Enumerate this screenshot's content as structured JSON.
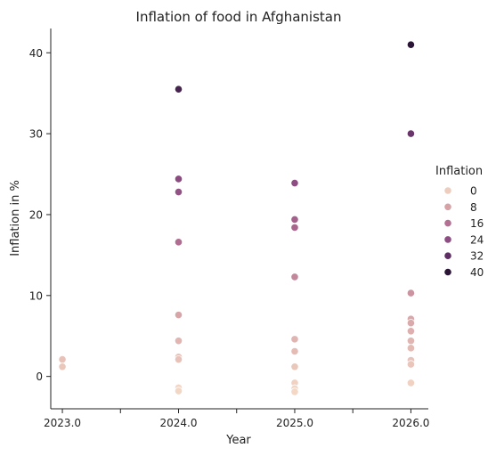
{
  "chart_data": {
    "type": "scatter",
    "title": "Inflation of food in Afghanistan",
    "xlabel": "Year",
    "ylabel": "Inflation in %",
    "xlim": [
      2022.9,
      2026.15
    ],
    "ylim": [
      -4,
      43
    ],
    "xticks": [
      2023.0,
      2023.5,
      2024.0,
      2024.5,
      2025.0,
      2025.5,
      2026.0
    ],
    "xtick_labels": [
      "2023.0",
      "",
      "2024.0",
      "",
      "2025.0",
      "",
      "2026.0"
    ],
    "yticks": [
      0,
      10,
      20,
      30,
      40
    ],
    "ytick_labels": [
      "0",
      "10",
      "20",
      "30",
      "40"
    ],
    "grid": false,
    "legend": {
      "title": "Inflation",
      "placement": "right",
      "entries": [
        {
          "label": "0",
          "color": "#eecdbf"
        },
        {
          "label": "8",
          "color": "#d6a2a6"
        },
        {
          "label": "16",
          "color": "#b37092"
        },
        {
          "label": "24",
          "color": "#8d4d82"
        },
        {
          "label": "32",
          "color": "#5e2d63"
        },
        {
          "label": "40",
          "color": "#2a1537"
        }
      ]
    },
    "hue_range": [
      -2,
      41
    ],
    "points": [
      {
        "x": 2023.0,
        "y": 2.1
      },
      {
        "x": 2023.0,
        "y": 1.2
      },
      {
        "x": 2024.0,
        "y": 35.5
      },
      {
        "x": 2024.0,
        "y": 24.4
      },
      {
        "x": 2024.0,
        "y": 22.8
      },
      {
        "x": 2024.0,
        "y": 16.6
      },
      {
        "x": 2024.0,
        "y": 7.6
      },
      {
        "x": 2024.0,
        "y": 4.4
      },
      {
        "x": 2024.0,
        "y": 2.4
      },
      {
        "x": 2024.0,
        "y": 2.1
      },
      {
        "x": 2024.0,
        "y": -1.4
      },
      {
        "x": 2024.0,
        "y": -1.8
      },
      {
        "x": 2025.0,
        "y": 23.9
      },
      {
        "x": 2025.0,
        "y": 19.4
      },
      {
        "x": 2025.0,
        "y": 18.4
      },
      {
        "x": 2025.0,
        "y": 12.3
      },
      {
        "x": 2025.0,
        "y": 4.6
      },
      {
        "x": 2025.0,
        "y": 3.1
      },
      {
        "x": 2025.0,
        "y": 1.2
      },
      {
        "x": 2025.0,
        "y": -0.8
      },
      {
        "x": 2025.0,
        "y": -1.5
      },
      {
        "x": 2025.0,
        "y": -1.9
      },
      {
        "x": 2026.0,
        "y": 41.0
      },
      {
        "x": 2026.0,
        "y": 30.0
      },
      {
        "x": 2026.0,
        "y": 10.3
      },
      {
        "x": 2026.0,
        "y": 7.1
      },
      {
        "x": 2026.0,
        "y": 6.6
      },
      {
        "x": 2026.0,
        "y": 5.6
      },
      {
        "x": 2026.0,
        "y": 4.4
      },
      {
        "x": 2026.0,
        "y": 3.5
      },
      {
        "x": 2026.0,
        "y": 2.0
      },
      {
        "x": 2026.0,
        "y": 1.5
      },
      {
        "x": 2026.0,
        "y": -0.8
      }
    ]
  }
}
